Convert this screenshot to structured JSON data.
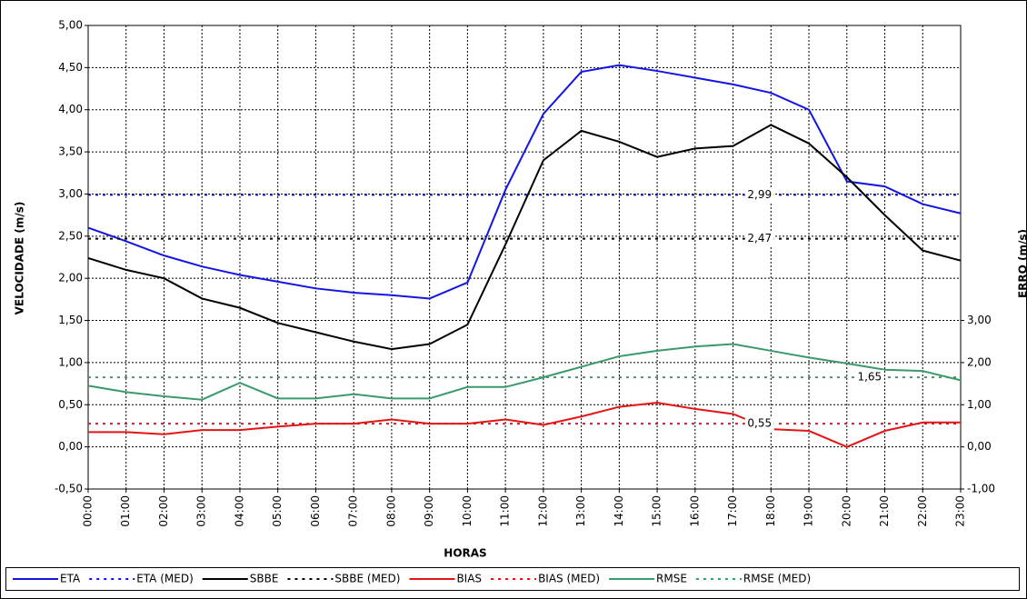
{
  "chart_data": {
    "type": "line",
    "x_label": "HORAS",
    "y_label": "VELOCIDADE (m/s)",
    "y2_label": "ERRO (m/s)",
    "categories": [
      "00:00",
      "01:00",
      "02:00",
      "03:00",
      "04:00",
      "05:00",
      "06:00",
      "07:00",
      "08:00",
      "09:00",
      "10:00",
      "11:00",
      "12:00",
      "13:00",
      "14:00",
      "15:00",
      "16:00",
      "17:00",
      "18:00",
      "19:00",
      "20:00",
      "21:00",
      "22:00",
      "23:00"
    ],
    "ylim": [
      -0.5,
      5.0
    ],
    "yticks": [
      {
        "value": -0.5,
        "label": "-0,50"
      },
      {
        "value": 0,
        "label": "0,00"
      },
      {
        "value": 0.5,
        "label": "0,50"
      },
      {
        "value": 1.0,
        "label": "1,00"
      },
      {
        "value": 1.5,
        "label": "1,50"
      },
      {
        "value": 2.0,
        "label": "2,00"
      },
      {
        "value": 2.5,
        "label": "2,50"
      },
      {
        "value": 3.0,
        "label": "3,00"
      },
      {
        "value": 3.5,
        "label": "3,50"
      },
      {
        "value": 4.0,
        "label": "4,00"
      },
      {
        "value": 4.5,
        "label": "4,50"
      },
      {
        "value": 5.0,
        "label": "5,00"
      }
    ],
    "y2lim": [
      -1.0,
      10.0
    ],
    "y2ticks": [
      {
        "value": -1.0,
        "label": "-1,00"
      },
      {
        "value": 0,
        "label": "0,00"
      },
      {
        "value": 1.0,
        "label": "1,00"
      },
      {
        "value": 2.0,
        "label": "2,00"
      },
      {
        "value": 3.0,
        "label": "3,00"
      }
    ],
    "grid": true,
    "legend": "bottom",
    "series": [
      {
        "name": "ETA",
        "color": "#1414e6",
        "style": "solid",
        "values": [
          2.6,
          2.44,
          2.27,
          2.14,
          2.04,
          1.96,
          1.88,
          1.83,
          1.8,
          1.76,
          1.95,
          3.05,
          3.95,
          4.45,
          4.53,
          4.46,
          4.38,
          4.3,
          4.2,
          4.0,
          3.15,
          3.09,
          2.88,
          2.77
        ]
      },
      {
        "name": "ETA (MED)",
        "color": "#1414e6",
        "style": "dashed",
        "value": 2.99,
        "value_label": "2,99"
      },
      {
        "name": "SBBE",
        "color": "#000000",
        "style": "solid",
        "values": [
          2.24,
          2.1,
          2.0,
          1.76,
          1.65,
          1.47,
          1.36,
          1.25,
          1.16,
          1.22,
          1.45,
          2.4,
          3.4,
          3.75,
          3.62,
          3.44,
          3.54,
          3.57,
          3.82,
          3.6,
          3.2,
          2.75,
          2.33,
          2.21
        ]
      },
      {
        "name": "SBBE (MED)",
        "color": "#000000",
        "style": "dashed",
        "value": 2.47,
        "value_label": "2,47"
      },
      {
        "name": "BIAS",
        "color": "#e61414",
        "style": "solid",
        "axis": "y2",
        "values": [
          0.35,
          0.35,
          0.3,
          0.4,
          0.4,
          0.48,
          0.55,
          0.55,
          0.65,
          0.55,
          0.55,
          0.65,
          0.52,
          0.72,
          0.95,
          1.05,
          0.9,
          0.78,
          0.42,
          0.38,
          0.0,
          0.38,
          0.58,
          0.58
        ]
      },
      {
        "name": "BIAS (MED)",
        "color": "#e61414",
        "style": "dashed",
        "axis": "y2",
        "value": 0.55,
        "value_label": "0,55"
      },
      {
        "name": "RMSE",
        "color": "#3a9a6a",
        "style": "solid",
        "axis": "y2",
        "values": [
          1.45,
          1.3,
          1.2,
          1.12,
          1.52,
          1.15,
          1.15,
          1.25,
          1.15,
          1.15,
          1.42,
          1.42,
          1.65,
          1.9,
          2.15,
          2.28,
          2.38,
          2.44,
          2.28,
          2.12,
          1.98,
          1.83,
          1.8,
          1.58
        ]
      },
      {
        "name": "RMSE (MED)",
        "color": "#3a9a6a",
        "style": "dashed",
        "axis": "y2",
        "value": 1.65,
        "value_label": "1,65"
      }
    ]
  }
}
